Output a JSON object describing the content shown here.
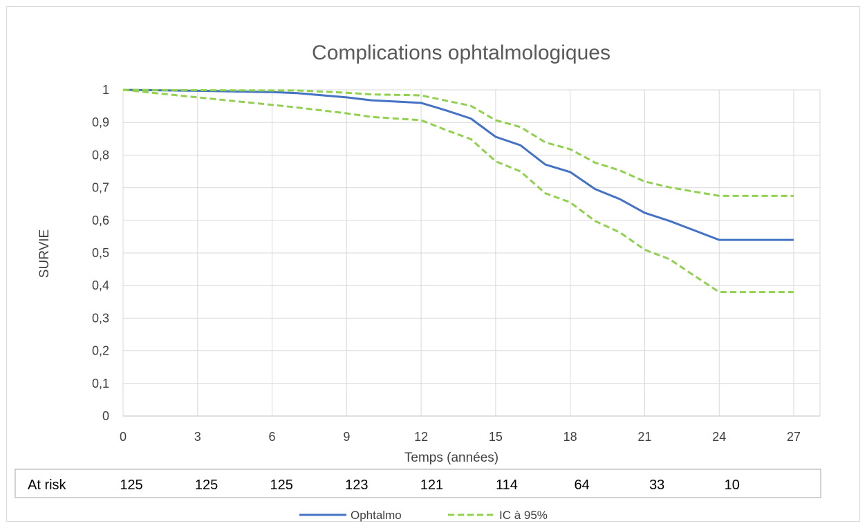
{
  "chart_data": {
    "type": "line",
    "title": "Complications ophtalmologiques",
    "xlabel": "Temps (années)",
    "ylabel": "SURVIE",
    "xlim": [
      0,
      27
    ],
    "ylim": [
      0,
      1
    ],
    "x_ticks": [
      "0",
      "3",
      "6",
      "9",
      "12",
      "15",
      "18",
      "21",
      "24",
      "27"
    ],
    "y_ticks": [
      "0",
      "0,1",
      "0,2",
      "0,3",
      "0,4",
      "0,5",
      "0,6",
      "0,7",
      "0,8",
      "0,9",
      "1"
    ],
    "grid": true,
    "legend": "bottom",
    "series": [
      {
        "name": "Ophtalmo",
        "color": "#4472c4",
        "style": "solid",
        "points": [
          [
            0,
            1
          ],
          [
            3,
            0.997
          ],
          [
            6,
            0.993
          ],
          [
            7,
            0.99
          ],
          [
            9,
            0.977
          ],
          [
            10,
            0.968
          ],
          [
            12,
            0.96
          ],
          [
            13,
            0.937
          ],
          [
            14,
            0.912
          ],
          [
            15,
            0.856
          ],
          [
            16,
            0.83
          ],
          [
            17,
            0.771
          ],
          [
            18,
            0.748
          ],
          [
            19,
            0.696
          ],
          [
            20,
            0.665
          ],
          [
            21,
            0.623
          ],
          [
            22,
            0.598
          ],
          [
            23,
            0.569
          ],
          [
            24,
            0.54
          ],
          [
            27,
            0.54
          ]
        ]
      },
      {
        "name": "IC à 95%",
        "color": "#92d050",
        "style": "dashed",
        "points": [
          [
            0,
            1
          ],
          [
            3,
            0.999
          ],
          [
            6,
            0.998
          ],
          [
            7,
            0.998
          ],
          [
            9,
            0.991
          ],
          [
            10,
            0.986
          ],
          [
            12,
            0.983
          ],
          [
            13,
            0.967
          ],
          [
            14,
            0.951
          ],
          [
            15,
            0.907
          ],
          [
            16,
            0.886
          ],
          [
            17,
            0.839
          ],
          [
            18,
            0.818
          ],
          [
            19,
            0.777
          ],
          [
            20,
            0.753
          ],
          [
            21,
            0.719
          ],
          [
            22,
            0.701
          ],
          [
            23,
            0.688
          ],
          [
            24,
            0.675
          ],
          [
            27,
            0.675
          ]
        ]
      },
      {
        "name": "",
        "color": "#92d050",
        "style": "dashed",
        "points": [
          [
            0,
            1
          ],
          [
            3,
            0.977
          ],
          [
            6,
            0.954
          ],
          [
            7,
            0.946
          ],
          [
            9,
            0.928
          ],
          [
            10,
            0.917
          ],
          [
            12,
            0.907
          ],
          [
            13,
            0.877
          ],
          [
            14,
            0.849
          ],
          [
            15,
            0.781
          ],
          [
            16,
            0.75
          ],
          [
            17,
            0.683
          ],
          [
            18,
            0.655
          ],
          [
            19,
            0.598
          ],
          [
            20,
            0.563
          ],
          [
            21,
            0.51
          ],
          [
            22,
            0.481
          ],
          [
            23,
            0.43
          ],
          [
            24,
            0.38
          ],
          [
            27,
            0.38
          ]
        ]
      }
    ],
    "at_risk": {
      "label": "At risk",
      "values": [
        "125",
        "125",
        "125",
        "123",
        "121",
        "114",
        "64",
        "33",
        "10"
      ]
    },
    "legend_items": [
      {
        "name": "Ophtalmo",
        "color": "#4472c4",
        "style": "solid"
      },
      {
        "name": "IC à 95%",
        "color": "#92d050",
        "style": "dashed"
      }
    ]
  }
}
